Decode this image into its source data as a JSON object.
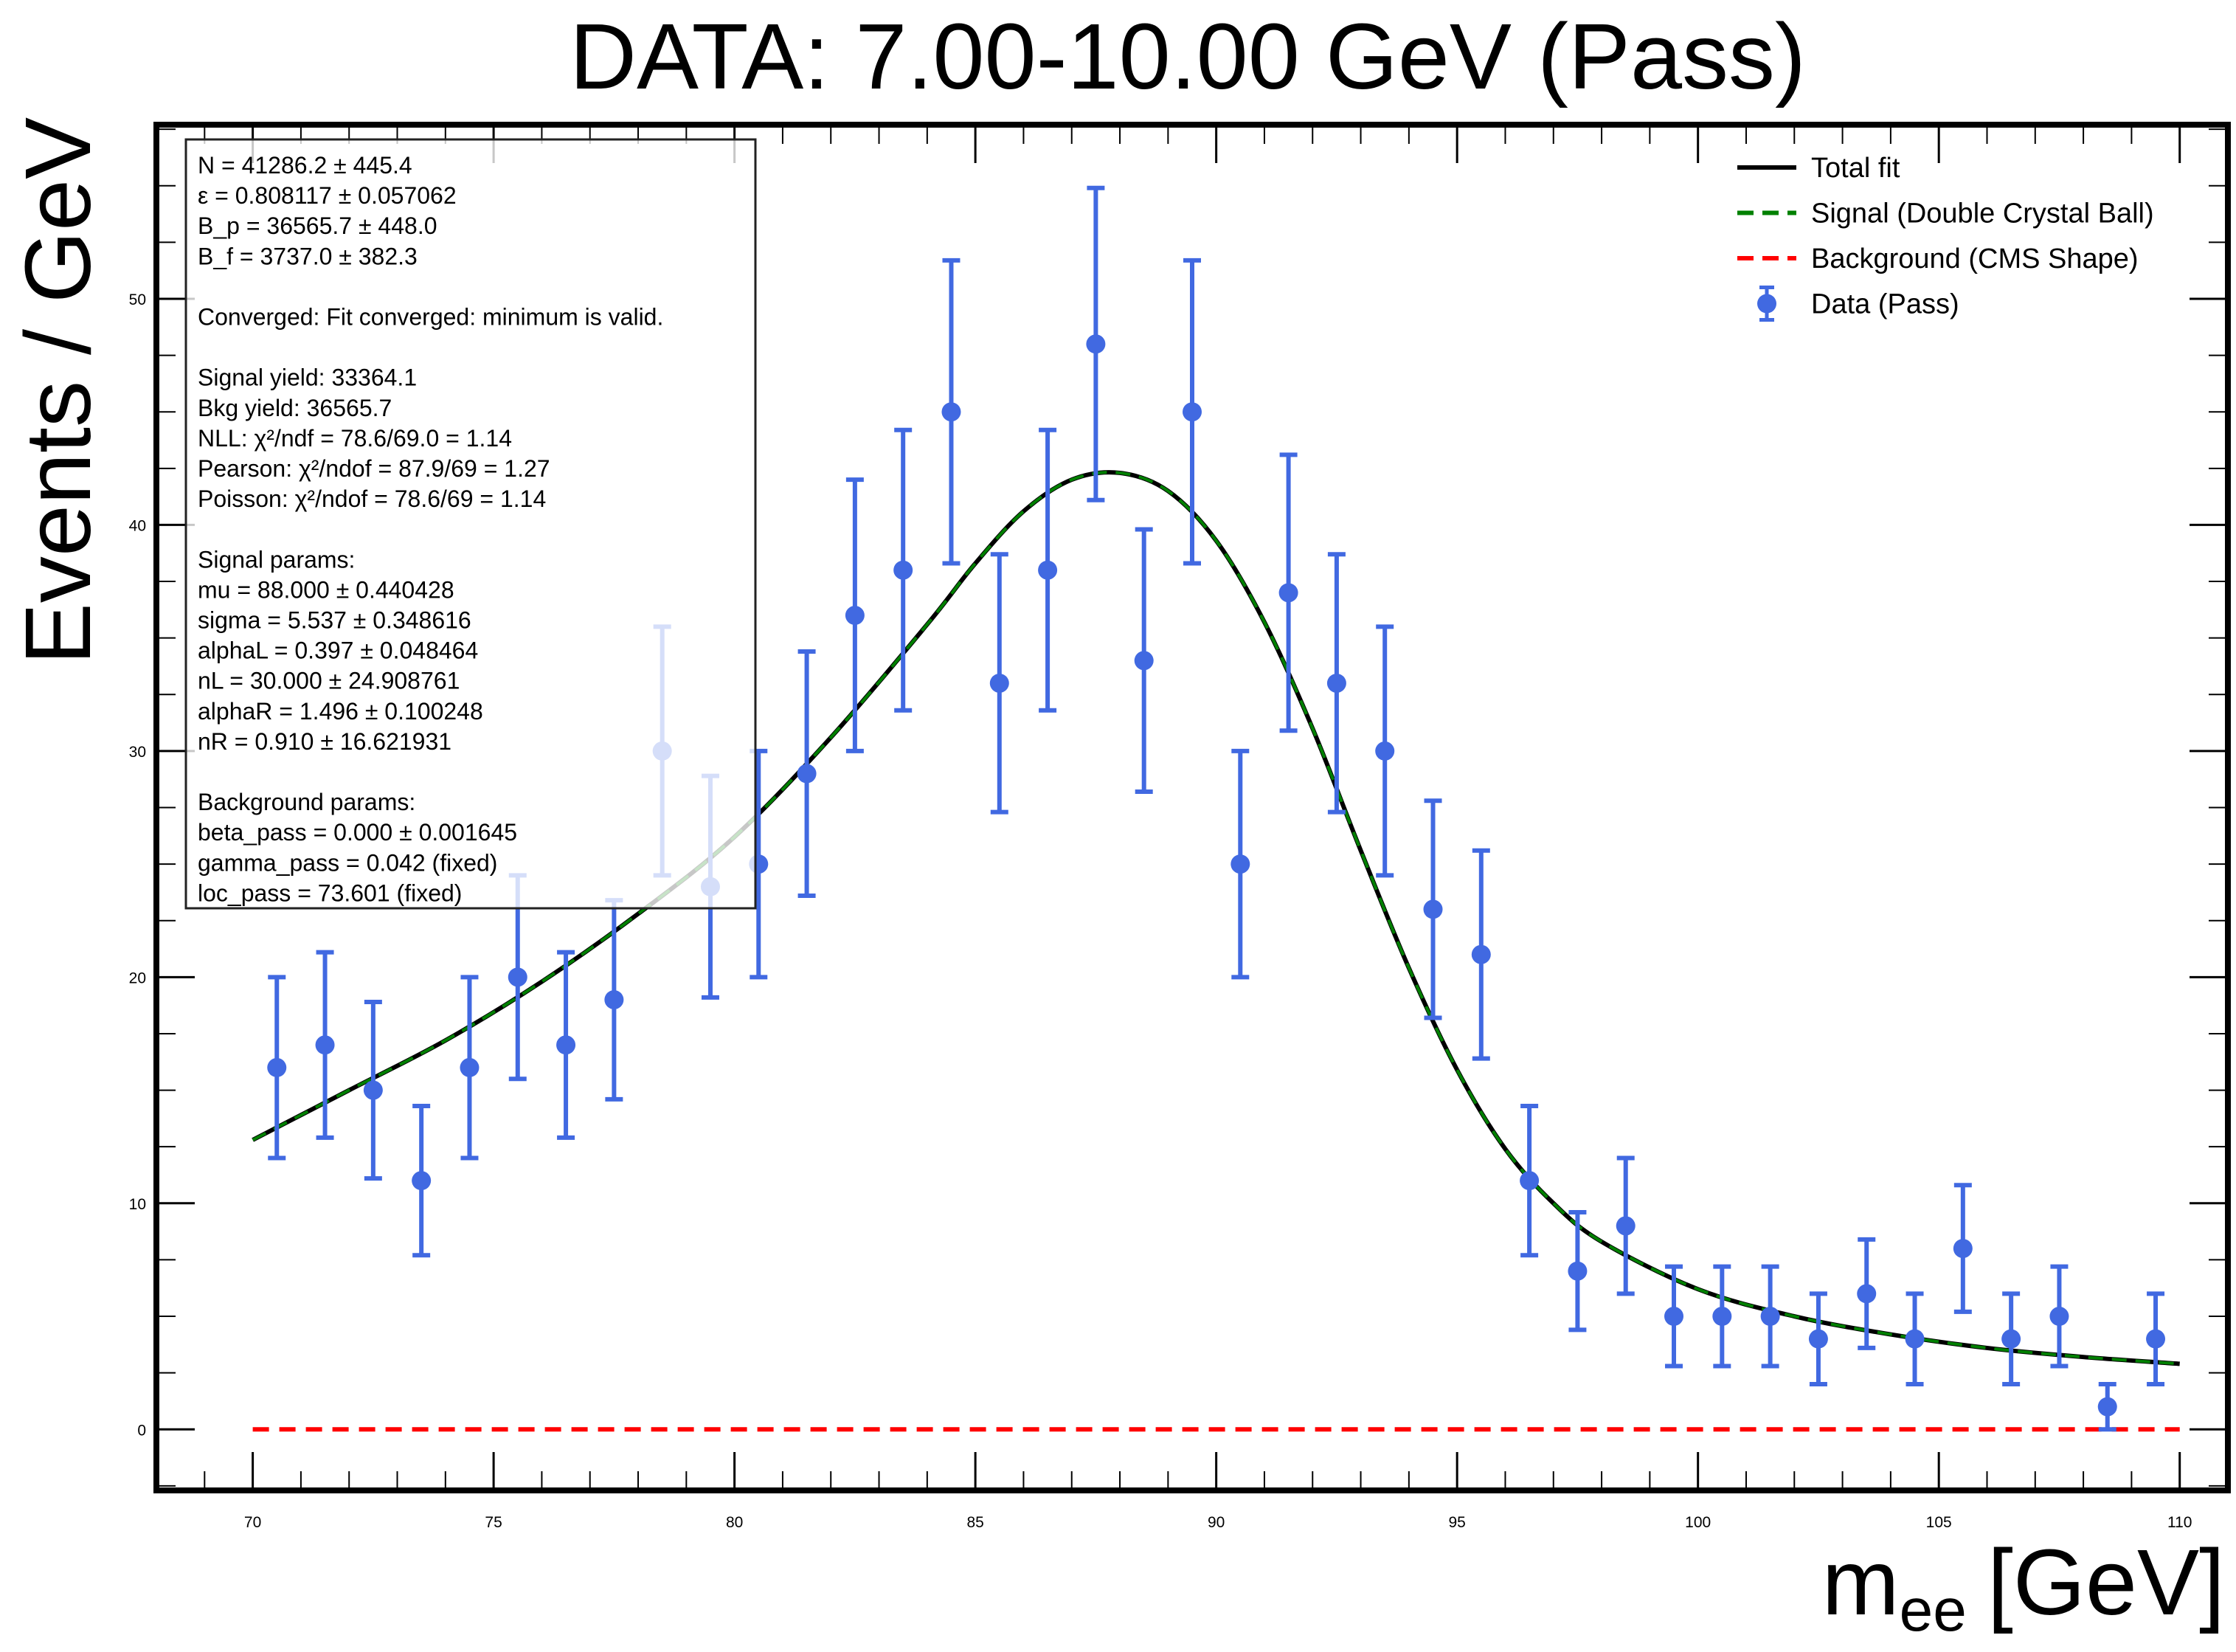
{
  "chart_data": {
    "type": "scatter",
    "title": "DATA: 7.00-10.00 GeV (Pass)",
    "ylabel": "Events / GeV",
    "xlabel": {
      "main": "m",
      "sub": "ee",
      "unit": "[GeV]"
    },
    "xlim": [
      68,
      111
    ],
    "ylim": [
      -2.7,
      57.7
    ],
    "x_ticks": [
      70,
      75,
      80,
      85,
      90,
      95,
      100,
      105,
      110
    ],
    "y_ticks": [
      0,
      10,
      20,
      30,
      40,
      50
    ],
    "grid": false,
    "legend_position": "top-right",
    "colors": {
      "data": "#4169E1",
      "total": "#000000",
      "signal": "#008000",
      "background": "#FF0000"
    },
    "legend": [
      {
        "label": "Total fit",
        "style": "solid",
        "color": "#000000"
      },
      {
        "label": "Signal (Double Crystal Ball)",
        "style": "dashed",
        "color": "#008000"
      },
      {
        "label": "Background (CMS Shape)",
        "style": "dashed",
        "color": "#FF0000"
      },
      {
        "label": "Data (Pass)",
        "style": "marker",
        "color": "#4169E1"
      }
    ],
    "series": [
      {
        "name": "Data (Pass)",
        "x": [
          70.5,
          71.5,
          72.5,
          73.5,
          74.5,
          75.5,
          76.5,
          77.5,
          78.5,
          79.5,
          80.5,
          81.5,
          82.5,
          83.5,
          84.5,
          85.5,
          86.5,
          87.5,
          88.5,
          89.5,
          90.5,
          91.5,
          92.5,
          93.5,
          94.5,
          95.5,
          96.5,
          97.5,
          98.5,
          99.5,
          100.5,
          101.5,
          102.5,
          103.5,
          104.5,
          105.5,
          106.5,
          107.5,
          108.5,
          109.5
        ],
        "y": [
          16,
          17,
          15,
          11,
          16,
          20,
          17,
          19,
          30,
          24,
          25,
          29,
          36,
          38,
          45,
          33,
          38,
          48,
          34,
          45,
          25,
          37,
          33,
          30,
          23,
          21,
          11,
          7,
          9,
          5,
          5,
          5,
          4,
          6,
          4,
          8,
          4,
          5,
          1,
          4
        ],
        "yerr_low": [
          4.0,
          4.1,
          3.9,
          3.3,
          4.0,
          4.5,
          4.1,
          4.4,
          5.5,
          4.9,
          5.0,
          5.4,
          6.0,
          6.2,
          6.7,
          5.7,
          6.2,
          6.9,
          5.8,
          6.7,
          5.0,
          6.1,
          5.7,
          5.5,
          4.8,
          4.6,
          3.3,
          2.6,
          3.0,
          2.2,
          2.2,
          2.2,
          2.0,
          2.4,
          2.0,
          2.8,
          2.0,
          2.2,
          1.0,
          2.0
        ],
        "yerr_high": [
          4.0,
          4.1,
          3.9,
          3.3,
          4.0,
          4.5,
          4.1,
          4.4,
          5.5,
          4.9,
          5.0,
          5.4,
          6.0,
          6.2,
          6.7,
          5.7,
          6.2,
          6.9,
          5.8,
          6.7,
          5.0,
          6.1,
          5.7,
          5.5,
          4.8,
          4.6,
          3.3,
          2.6,
          3.0,
          2.2,
          2.2,
          2.2,
          2.0,
          2.4,
          2.0,
          2.8,
          2.0,
          2.2,
          1.0,
          2.0
        ]
      },
      {
        "name": "Total fit",
        "x": [
          70,
          72,
          74,
          76,
          78,
          80,
          82,
          84,
          85,
          86,
          87,
          88,
          89,
          90,
          91,
          92,
          93,
          94,
          95,
          96,
          97,
          98,
          100,
          102,
          104,
          106,
          108,
          110
        ],
        "y": [
          12.8,
          15.0,
          17.2,
          19.8,
          22.8,
          26.2,
          30.6,
          35.6,
          38.3,
          40.6,
          42.0,
          42.3,
          41.5,
          39.3,
          35.7,
          31.0,
          25.6,
          20.4,
          15.9,
          12.4,
          10.0,
          8.3,
          6.2,
          5.0,
          4.2,
          3.6,
          3.2,
          2.9
        ]
      },
      {
        "name": "Signal (Double Crystal Ball)",
        "x": [
          70,
          72,
          74,
          76,
          78,
          80,
          82,
          84,
          85,
          86,
          87,
          88,
          89,
          90,
          91,
          92,
          93,
          94,
          95,
          96,
          97,
          98,
          100,
          102,
          104,
          106,
          108,
          110
        ],
        "y": [
          12.8,
          15.0,
          17.2,
          19.8,
          22.8,
          26.2,
          30.6,
          35.6,
          38.3,
          40.6,
          42.0,
          42.3,
          41.5,
          39.3,
          35.7,
          31.0,
          25.6,
          20.4,
          15.9,
          12.4,
          10.0,
          8.3,
          6.2,
          5.0,
          4.2,
          3.6,
          3.2,
          2.9
        ]
      },
      {
        "name": "Background (CMS Shape)",
        "x": [
          70,
          110
        ],
        "y": [
          0.0,
          0.0
        ]
      }
    ],
    "stats_box": [
      "N = 41286.2 ± 445.4",
      "ε = 0.808117 ± 0.057062",
      "B_p = 36565.7 ± 448.0",
      "B_f = 3737.0 ± 382.3",
      "",
      "Converged: Fit converged: minimum is valid.",
      "",
      "Signal yield: 33364.1",
      "Bkg yield: 36565.7",
      "NLL: χ²/ndf = 78.6/69.0 = 1.14",
      "Pearson: χ²/ndof = 87.9/69 = 1.27",
      "Poisson: χ²/ndof = 78.6/69 = 1.14",
      "",
      "Signal params:",
      "mu = 88.000 ± 0.440428",
      "sigma = 5.537 ± 0.348616",
      "alphaL = 0.397 ± 0.048464",
      "nL = 30.000 ± 24.908761",
      "alphaR = 1.496 ± 0.100248",
      "nR = 0.910 ± 16.621931",
      "",
      "Background params:",
      "beta_pass = 0.000 ± 0.001645",
      "gamma_pass = 0.042 (fixed)",
      "loc_pass = 73.601 (fixed)"
    ]
  }
}
